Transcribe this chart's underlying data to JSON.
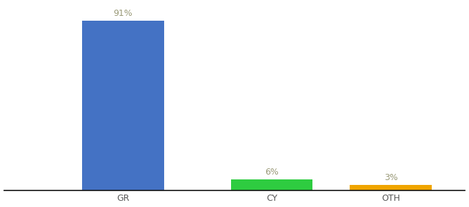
{
  "categories": [
    "GR",
    "CY",
    "OTH"
  ],
  "values": [
    91,
    6,
    3
  ],
  "bar_colors": [
    "#4472c4",
    "#2ecc40",
    "#f0a500"
  ],
  "label_texts": [
    "91%",
    "6%",
    "3%"
  ],
  "background_color": "#ffffff",
  "ylim": [
    0,
    100
  ],
  "label_color": "#999977",
  "label_fontsize": 9,
  "tick_fontsize": 9,
  "tick_color": "#555555",
  "bar_width": 0.55,
  "xlim": [
    -0.3,
    2.8
  ]
}
